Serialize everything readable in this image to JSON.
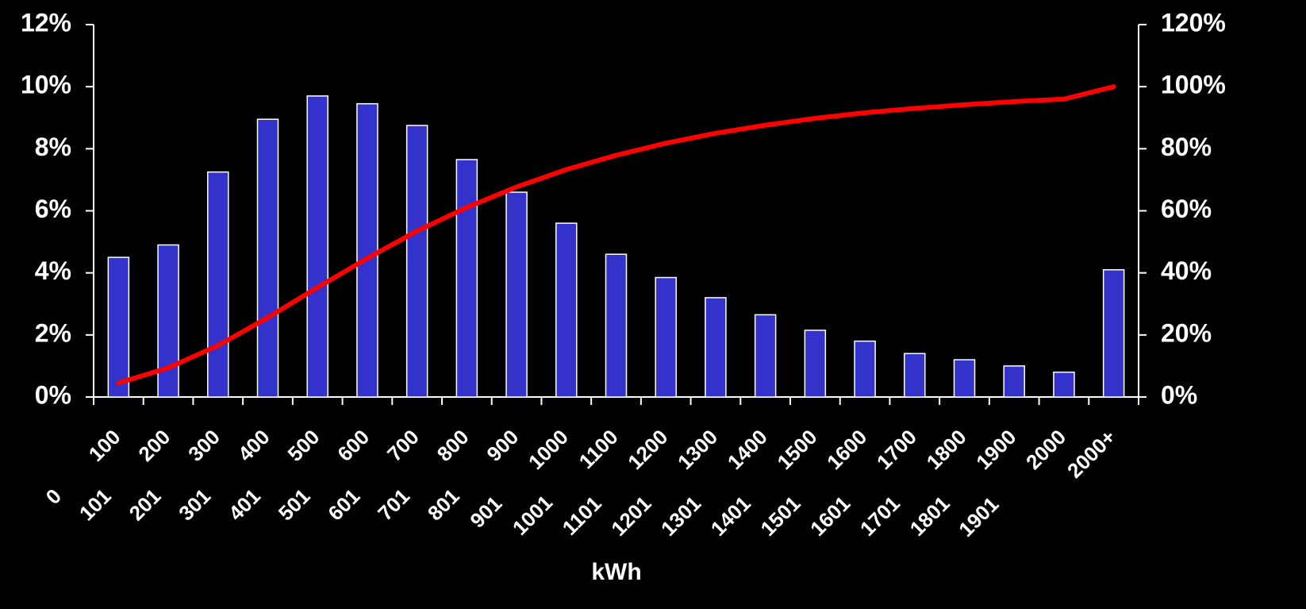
{
  "chart_data": {
    "type": "bar",
    "x_label": "kWh",
    "categories": [
      [
        "0",
        "100"
      ],
      [
        "101",
        "200"
      ],
      [
        "201",
        "300"
      ],
      [
        "301",
        "400"
      ],
      [
        "401",
        "500"
      ],
      [
        "501",
        "600"
      ],
      [
        "601",
        "700"
      ],
      [
        "701",
        "800"
      ],
      [
        "801",
        "900"
      ],
      [
        "901",
        "1000"
      ],
      [
        "1001",
        "1100"
      ],
      [
        "1101",
        "1200"
      ],
      [
        "1201",
        "1300"
      ],
      [
        "1301",
        "1400"
      ],
      [
        "1401",
        "1500"
      ],
      [
        "1501",
        "1600"
      ],
      [
        "1601",
        "1700"
      ],
      [
        "1701",
        "1800"
      ],
      [
        "1801",
        "1900"
      ],
      [
        "1901",
        "2000"
      ],
      [
        "2000+"
      ]
    ],
    "series": [
      {
        "type": "bar",
        "axis": "y",
        "color": "#3333cc",
        "values": [
          4.5,
          4.9,
          7.25,
          8.95,
          9.7,
          9.45,
          8.75,
          7.65,
          6.6,
          5.6,
          4.6,
          3.85,
          3.2,
          2.65,
          2.15,
          1.8,
          1.4,
          1.2,
          1.0,
          0.8,
          4.1
        ]
      },
      {
        "type": "line",
        "axis": "y2",
        "color": "#ff0000",
        "values": [
          4.5,
          9.4,
          16.6,
          25.6,
          35.3,
          44.7,
          53.5,
          61.1,
          67.7,
          73.3,
          77.9,
          81.8,
          85.0,
          87.6,
          89.8,
          91.6,
          93.0,
          94.2,
          95.2,
          96.0,
          100
        ]
      }
    ],
    "ylim": [
      0,
      12
    ],
    "yticks": [
      {
        "value": 0,
        "label": "0%"
      },
      {
        "value": 2,
        "label": "2%"
      },
      {
        "value": 4,
        "label": "4%"
      },
      {
        "value": 6,
        "label": "6%"
      },
      {
        "value": 8,
        "label": "8%"
      },
      {
        "value": 10,
        "label": "10%"
      },
      {
        "value": 12,
        "label": "12%"
      }
    ],
    "y2lim": [
      0,
      120
    ],
    "y2ticks": [
      {
        "value": 0,
        "label": "0%"
      },
      {
        "value": 20,
        "label": "20%"
      },
      {
        "value": 40,
        "label": "40%"
      },
      {
        "value": 60,
        "label": "60%"
      },
      {
        "value": 80,
        "label": "80%"
      },
      {
        "value": 100,
        "label": "100%"
      },
      {
        "value": 120,
        "label": "120%"
      }
    ]
  }
}
